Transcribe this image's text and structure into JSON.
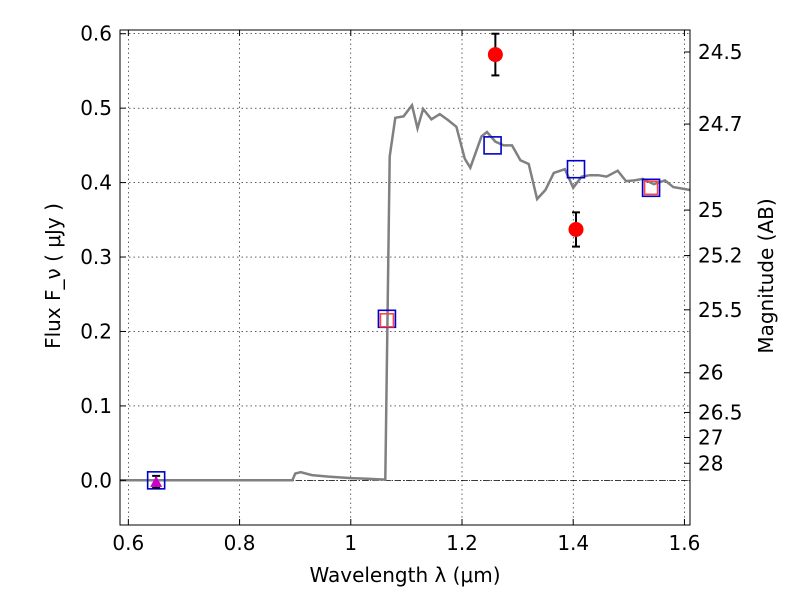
{
  "chart_data": {
    "type": "line",
    "xlabel": "Wavelength  λ (μm)",
    "ylabel": "Flux  F_ν  ( μJy )",
    "y2label": "Magnitude (AB)",
    "xlim": [
      0.585,
      1.61
    ],
    "ylim": [
      -0.06,
      0.605
    ],
    "grid": true,
    "x_ticks": [
      0.6,
      0.8,
      1.0,
      1.2,
      1.4,
      1.6
    ],
    "x_tick_labels": [
      "0.6",
      "0.8",
      "1",
      "1.2",
      "1.4",
      "1.6"
    ],
    "y_ticks": [
      0.0,
      0.1,
      0.2,
      0.3,
      0.4,
      0.5,
      0.6
    ],
    "y_tick_labels": [
      "0.0",
      "0.1",
      "0.2",
      "0.3",
      "0.4",
      "0.5",
      "0.6"
    ],
    "y2_ticks": [
      24.5,
      24.7,
      25,
      25.2,
      25.5,
      26,
      26.5,
      27,
      28
    ],
    "y2_tick_labels": [
      "24.5",
      "24.7",
      "25",
      "25.2",
      "25.5",
      "26",
      "26.5",
      "27",
      "28"
    ],
    "series": [
      {
        "kind": "line",
        "color": "#808080",
        "x": [
          0.585,
          0.85,
          0.895,
          0.9,
          0.91,
          0.93,
          0.96,
          1.0,
          1.03,
          1.062,
          1.07,
          1.08,
          1.095,
          1.11,
          1.12,
          1.13,
          1.145,
          1.16,
          1.175,
          1.19,
          1.205,
          1.215,
          1.235,
          1.245,
          1.26,
          1.275,
          1.29,
          1.305,
          1.32,
          1.335,
          1.35,
          1.365,
          1.385,
          1.4,
          1.415,
          1.43,
          1.445,
          1.46,
          1.48,
          1.495,
          1.51,
          1.525,
          1.545,
          1.565,
          1.58,
          1.595,
          1.61
        ],
        "y": [
          0.0,
          0.0,
          0.0,
          0.009,
          0.011,
          0.007,
          0.005,
          0.003,
          0.002,
          0.001,
          0.435,
          0.487,
          0.489,
          0.504,
          0.473,
          0.499,
          0.485,
          0.492,
          0.484,
          0.475,
          0.432,
          0.42,
          0.462,
          0.468,
          0.455,
          0.45,
          0.45,
          0.43,
          0.425,
          0.378,
          0.39,
          0.413,
          0.418,
          0.393,
          0.408,
          0.41,
          0.41,
          0.408,
          0.416,
          0.402,
          0.403,
          0.405,
          0.398,
          0.403,
          0.394,
          0.392,
          0.39
        ]
      },
      {
        "kind": "scatter",
        "marker": "circle",
        "color": "#ff0000",
        "x": [
          1.26,
          1.405
        ],
        "y": [
          0.572,
          0.337
        ],
        "yerr": [
          0.028,
          0.023
        ]
      },
      {
        "kind": "scatter",
        "marker": "square-open",
        "color": "#0000cc",
        "x": [
          0.65,
          1.065,
          1.255,
          1.405,
          1.54
        ],
        "y": [
          0.0,
          0.217,
          0.45,
          0.418,
          0.393
        ]
      },
      {
        "kind": "scatter",
        "marker": "square-open",
        "color": "#ff4444",
        "x": [
          1.065,
          1.54
        ],
        "y": [
          0.215,
          0.393
        ]
      },
      {
        "kind": "scatter",
        "marker": "triangle",
        "color": "#cc00cc",
        "x": [
          0.65
        ],
        "y": [
          -0.002
        ],
        "yerr": [
          0.008
        ]
      }
    ]
  }
}
